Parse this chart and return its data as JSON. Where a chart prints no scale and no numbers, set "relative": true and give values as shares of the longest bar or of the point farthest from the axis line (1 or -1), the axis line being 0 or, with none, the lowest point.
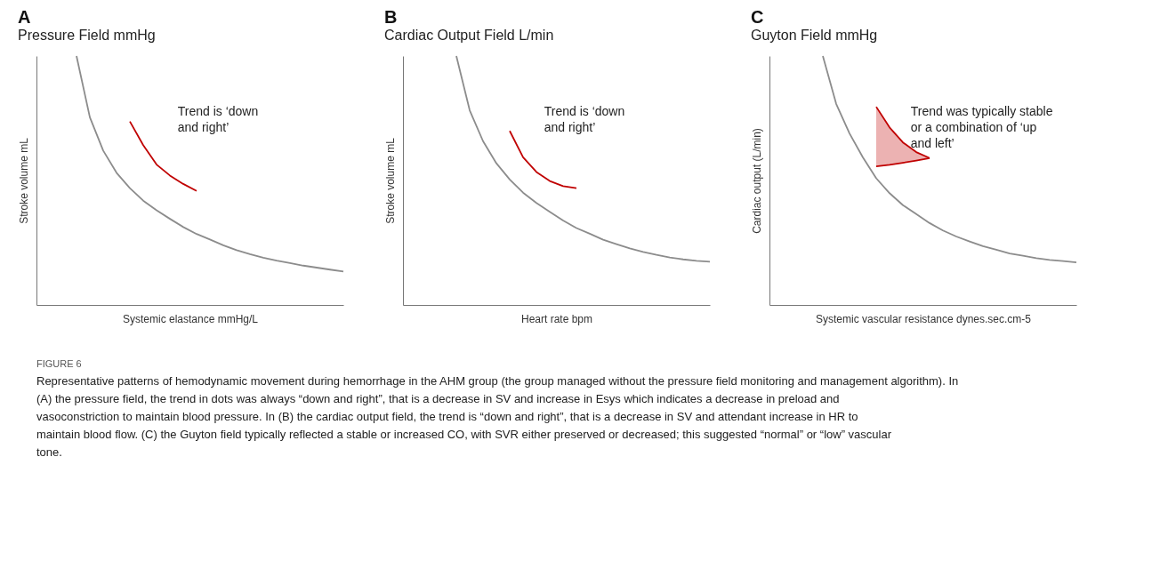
{
  "chart_data": [
    {
      "type": "line",
      "title": "A",
      "subtitle": "Pressure Field mmHg",
      "xlabel": "Systemic elastance mmHg/L",
      "ylabel": "Stroke volume mL",
      "relative": true,
      "grid": false,
      "categories": [
        null,
        null,
        null,
        null,
        null,
        null,
        null,
        null,
        null,
        null,
        null,
        null,
        null,
        null,
        null,
        null,
        null,
        null,
        null,
        null,
        null,
        null,
        null,
        null
      ],
      "series": [
        {
          "color": "#8c8c8c",
          "values": [
            null,
            null,
            null,
            1,
            0.754,
            0.62,
            0.531,
            0.469,
            0.419,
            0.38,
            0.346,
            0.313,
            0.285,
            0.263,
            0.24,
            0.22,
            0.204,
            0.19,
            0.178,
            0.168,
            0.158,
            0.15,
            0.142,
            0.134
          ]
        },
        {
          "color": "#c00000",
          "values": [
            null,
            null,
            null,
            null,
            null,
            null,
            null,
            0.737,
            0.642,
            0.564,
            0.52,
            0.486,
            0.458,
            null,
            null,
            null,
            null,
            null,
            null,
            null,
            null,
            null,
            null,
            null
          ]
        }
      ],
      "annotations": [
        "Trend is ‘down and right’"
      ]
    },
    {
      "type": "line",
      "title": "B",
      "subtitle": "Cardiac Output Field L/min",
      "xlabel": "Heart rate bpm",
      "ylabel": "Stroke volume mL",
      "relative": true,
      "grid": false,
      "categories": [
        null,
        null,
        null,
        null,
        null,
        null,
        null,
        null,
        null,
        null,
        null,
        null,
        null,
        null,
        null,
        null,
        null,
        null,
        null,
        null,
        null,
        null,
        null,
        null
      ],
      "series": [
        {
          "color": "#8c8c8c",
          "values": [
            null,
            null,
            null,
            null,
            1,
            0.782,
            0.658,
            0.569,
            0.504,
            0.451,
            0.41,
            0.374,
            0.339,
            0.309,
            0.286,
            0.262,
            0.244,
            0.227,
            0.213,
            0.201,
            0.191,
            0.183,
            0.177,
            0.174
          ]
        },
        {
          "color": "#c00000",
          "values": [
            null,
            null,
            null,
            null,
            null,
            null,
            null,
            null,
            0.699,
            0.593,
            0.534,
            0.498,
            0.477,
            0.469,
            null,
            null,
            null,
            null,
            null,
            null,
            null,
            null,
            null,
            null
          ]
        }
      ],
      "annotations": [
        "Trend is ‘down and right’"
      ]
    },
    {
      "type": "line",
      "title": "C",
      "subtitle": "Guyton Field mmHg",
      "xlabel": "Systemic vascular resistance dynes.sec.cm-5",
      "ylabel": "Cardiac output (L/min)",
      "relative": true,
      "grid": false,
      "categories": [
        null,
        null,
        null,
        null,
        null,
        null,
        null,
        null,
        null,
        null,
        null,
        null,
        null,
        null,
        null,
        null,
        null,
        null,
        null,
        null,
        null,
        null,
        null,
        null
      ],
      "series": [
        {
          "color": "#8c8c8c",
          "values": [
            null,
            null,
            null,
            null,
            1,
            0.808,
            0.689,
            0.593,
            0.509,
            0.449,
            0.401,
            0.365,
            0.329,
            0.299,
            0.275,
            0.255,
            0.236,
            0.222,
            0.207,
            0.198,
            0.188,
            0.181,
            0.176,
            0.171
          ]
        },
        {
          "color": "#c00000",
          "values": [
            null,
            null,
            null,
            null,
            null,
            null,
            null,
            null,
            0.796,
            0.713,
            0.653,
            0.614,
            0.59,
            null,
            null,
            null,
            null,
            null,
            null,
            null,
            null,
            null,
            null,
            null
          ],
          "lower": [
            null,
            null,
            null,
            null,
            null,
            null,
            null,
            null,
            0.557,
            0.563,
            0.571,
            0.58,
            0.59,
            null,
            null,
            null,
            null,
            null,
            null,
            null,
            null,
            null,
            null,
            null
          ],
          "upper": [
            null,
            null,
            null,
            null,
            null,
            null,
            null,
            null,
            0.796,
            0.713,
            0.653,
            0.614,
            0.59,
            null,
            null,
            null,
            null,
            null,
            null,
            null,
            null,
            null,
            null,
            null
          ]
        },
        {
          "color": "#c00000",
          "values": [
            null,
            null,
            null,
            null,
            null,
            null,
            null,
            null,
            0.557,
            0.563,
            0.571,
            0.58,
            0.59,
            null,
            null,
            null,
            null,
            null,
            null,
            null,
            null,
            null,
            null,
            null
          ]
        }
      ],
      "annotations": [
        "Trend was typically stable or a combination of ‘up and left’"
      ]
    },
    {
      "type": "other",
      "title": "FIGURE 6",
      "annotations": [
        "Representative patterns of hemodynamic movement during hemorrhage in the AHM group (the group managed without the pressure field monitoring and management algorithm). In (A) the pressure field, the trend in dots was always “down and right”, that is a decrease in SV and increase in Esys which indicates a decrease in preload and vasoconstriction to maintain blood pressure. In (B) the cardiac output field, the trend is “down and right”, that is a decrease in SV and attendant increase in HR to maintain blood flow. (C) the Guyton field typically reflected a stable or increased CO, with SVR either preserved or decreased; this suggested “normal” or “low” vascular tone."
      ]
    }
  ]
}
